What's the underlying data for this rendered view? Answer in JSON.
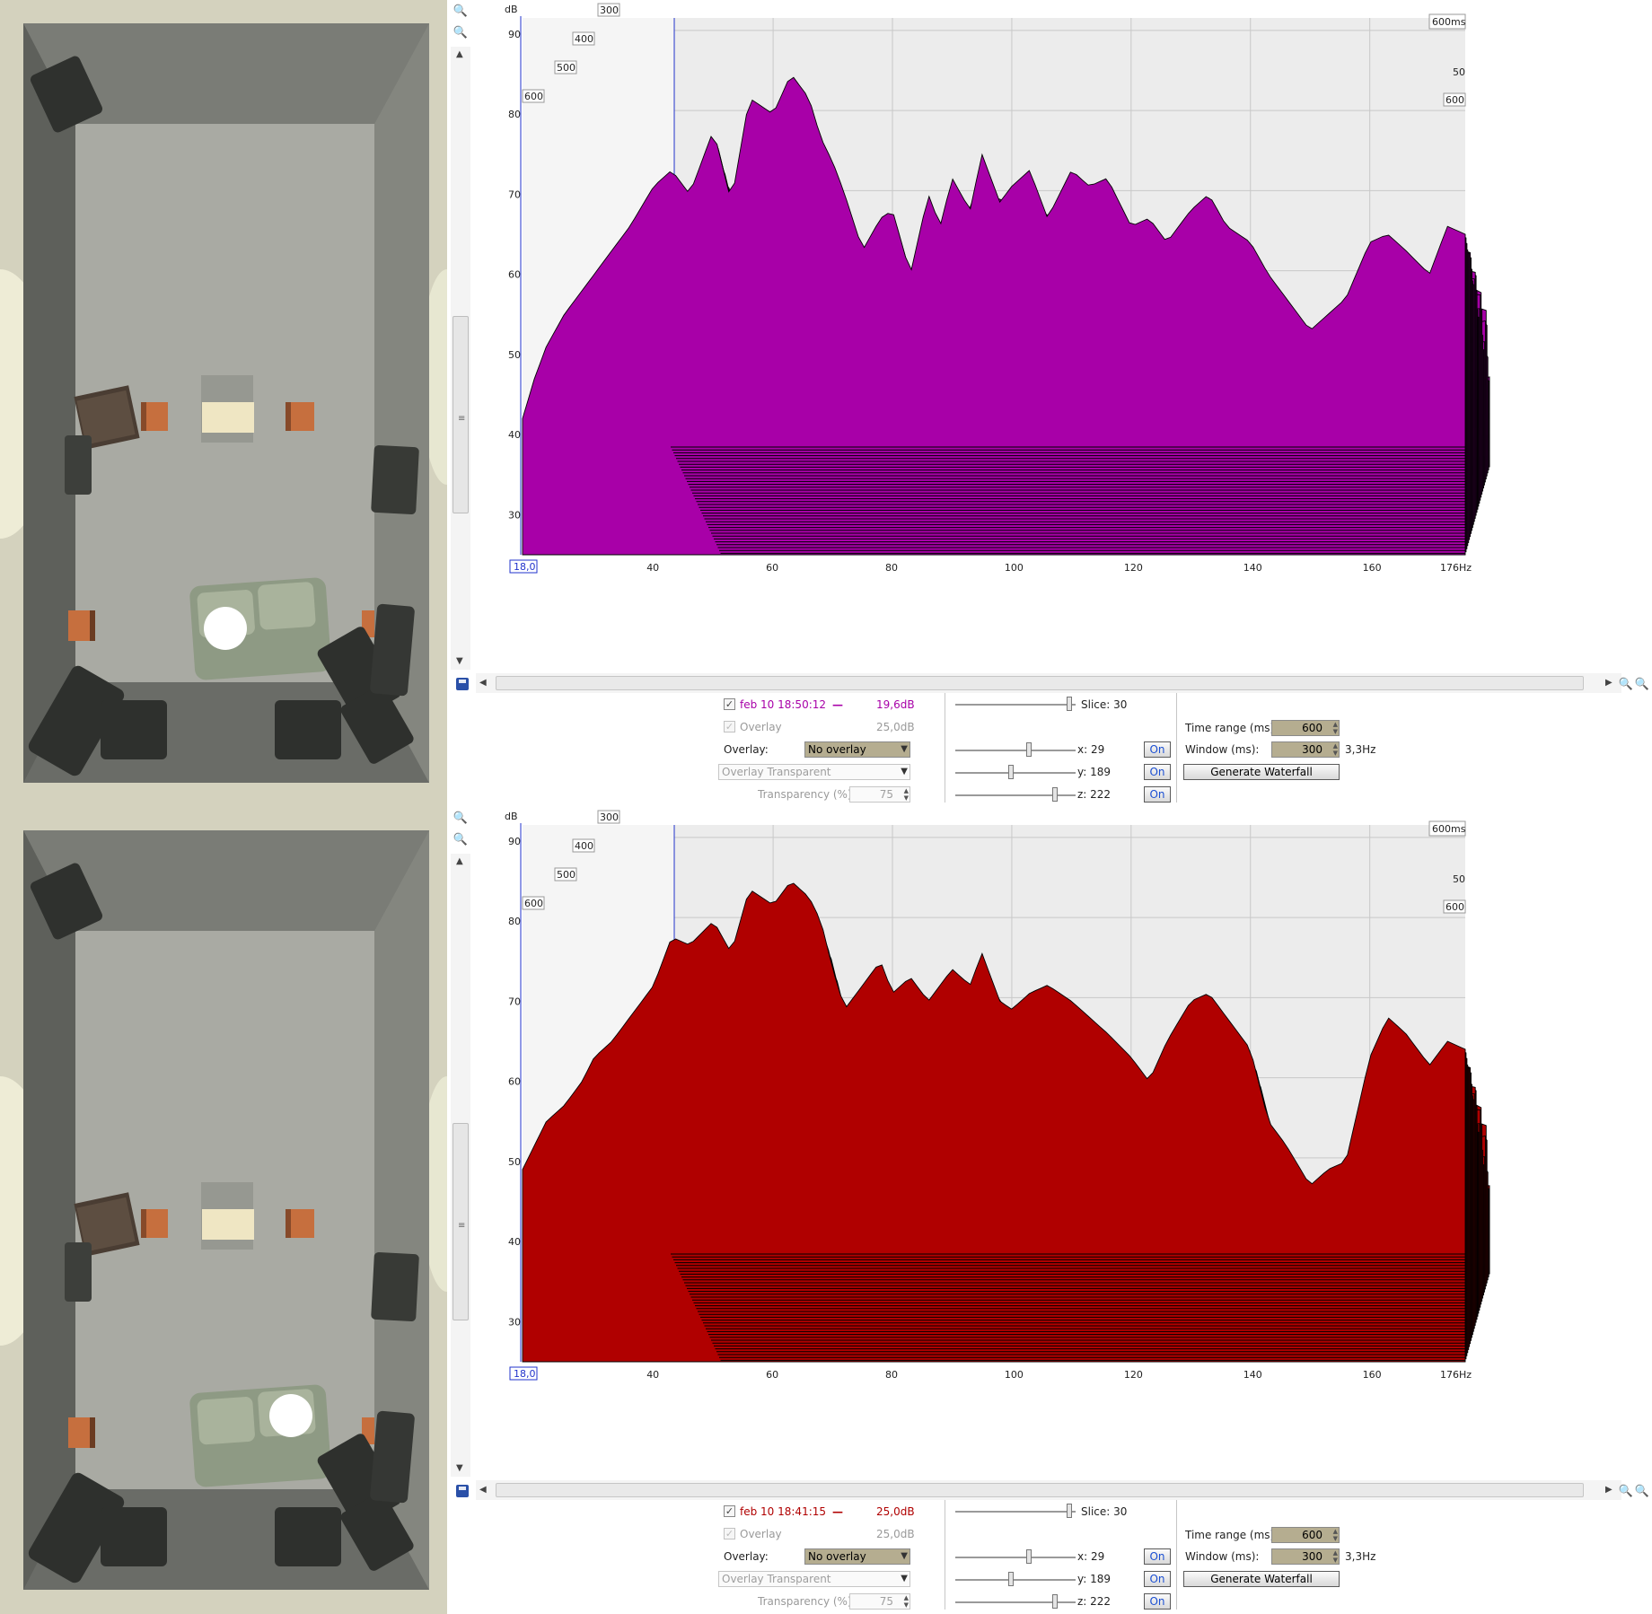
{
  "panels": [
    {
      "id": "top",
      "listener": "left",
      "waterfall_color": "#a800a8",
      "chart_data": {
        "type": "area",
        "title": "",
        "xlabel": "",
        "ylabel": "dB",
        "x_ticks": [
          "40",
          "60",
          "80",
          "100",
          "120",
          "140",
          "160"
        ],
        "x_start_label": "18,0",
        "x_end_label": "176Hz",
        "xlim": [
          18,
          176
        ],
        "y_ticks": [
          "90",
          "80",
          "70",
          "60",
          "50",
          "40",
          "30"
        ],
        "ylim": [
          25,
          92
        ],
        "depth_ticks": [
          "600",
          "500",
          "400",
          "300"
        ],
        "depth_right_top": "600ms",
        "depth_right_mid": "50",
        "depth_right_low": "600",
        "front_curve": {
          "freq": [
            18,
            20,
            22,
            25,
            28,
            30,
            33,
            36,
            40,
            43,
            46,
            50,
            53,
            56,
            60,
            63,
            66,
            68,
            70,
            72,
            75,
            78,
            80,
            83,
            86,
            88,
            90,
            93,
            95,
            98,
            100,
            103,
            106,
            110,
            113,
            116,
            120,
            123,
            126,
            130,
            133,
            136,
            140,
            143,
            146,
            150,
            153,
            156,
            160,
            163,
            166,
            170,
            173,
            176
          ],
          "db": [
            42,
            47,
            51,
            55,
            58,
            60,
            63,
            66,
            71,
            73,
            70,
            78,
            69,
            82,
            80,
            85,
            82,
            77,
            74,
            70,
            63,
            67,
            68,
            60,
            70,
            66,
            72,
            68,
            75,
            69,
            71,
            73,
            67,
            73,
            71,
            72,
            66,
            67,
            64,
            68,
            70,
            66,
            64,
            60,
            57,
            53,
            55,
            57,
            64,
            65,
            63,
            60,
            66,
            65
          ]
        }
      },
      "controls": {
        "measurement_label": "feb 10 18:50:12",
        "measurement_value": "19,6dB",
        "measurement_color": "#a800a8",
        "overlay_check_label": "Overlay",
        "overlay_value": "25,0dB",
        "overlay_label": "Overlay:",
        "overlay_select": "No overlay",
        "overlay_mode_select": "Overlay Transparent",
        "transparency_label": "Transparency (%)",
        "transparency_value": "75",
        "slice_label": "Slice: 30",
        "x_label": "x: 29",
        "y_label": "y: 189",
        "z_label": "z: 222",
        "on_label": "On",
        "time_range_label": "Time range (ms):",
        "time_range_value": "600",
        "window_label": "Window (ms):",
        "window_value": "300",
        "window_resolution": "3,3Hz",
        "generate_label": "Generate Waterfall"
      }
    },
    {
      "id": "bottom",
      "listener": "right",
      "waterfall_color": "#b00000",
      "chart_data": {
        "type": "area",
        "title": "",
        "xlabel": "",
        "ylabel": "dB",
        "x_ticks": [
          "40",
          "60",
          "80",
          "100",
          "120",
          "140",
          "160"
        ],
        "x_start_label": "18,0",
        "x_end_label": "176Hz",
        "xlim": [
          18,
          176
        ],
        "y_ticks": [
          "90",
          "80",
          "70",
          "60",
          "50",
          "40",
          "30"
        ],
        "ylim": [
          25,
          92
        ],
        "depth_ticks": [
          "600",
          "500",
          "400",
          "300"
        ],
        "depth_right_top": "600ms",
        "depth_right_mid": "50",
        "depth_right_low": "600",
        "front_curve": {
          "freq": [
            18,
            20,
            22,
            25,
            28,
            30,
            33,
            36,
            40,
            43,
            46,
            50,
            53,
            56,
            60,
            63,
            66,
            68,
            70,
            72,
            75,
            78,
            80,
            83,
            86,
            88,
            90,
            93,
            95,
            98,
            100,
            103,
            106,
            110,
            113,
            116,
            120,
            123,
            126,
            130,
            133,
            136,
            140,
            143,
            146,
            150,
            153,
            156,
            160,
            163,
            166,
            170,
            173,
            176
          ],
          "db": [
            49,
            52,
            55,
            57,
            60,
            63,
            65,
            68,
            72,
            78,
            77,
            80,
            76,
            84,
            82,
            85,
            83,
            80,
            74,
            69,
            72,
            75,
            71,
            73,
            70,
            72,
            74,
            72,
            76,
            70,
            69,
            71,
            72,
            70,
            68,
            66,
            63,
            60,
            65,
            70,
            71,
            68,
            64,
            55,
            52,
            47,
            49,
            50,
            63,
            68,
            66,
            62,
            65,
            64
          ]
        }
      },
      "controls": {
        "measurement_label": "feb 10 18:41:15",
        "measurement_value": "25,0dB",
        "measurement_color": "#b00000",
        "overlay_check_label": "Overlay",
        "overlay_value": "25,0dB",
        "overlay_label": "Overlay:",
        "overlay_select": "No overlay",
        "overlay_mode_select": "Overlay Transparent",
        "transparency_label": "Transparency (%)",
        "transparency_value": "75",
        "slice_label": "Slice: 30",
        "x_label": "x: 29",
        "y_label": "y: 189",
        "z_label": "z: 222",
        "on_label": "On",
        "time_range_label": "Time range (ms):",
        "time_range_value": "600",
        "window_label": "Window (ms):",
        "window_value": "300",
        "window_resolution": "3,3Hz",
        "generate_label": "Generate Waterfall"
      }
    }
  ]
}
